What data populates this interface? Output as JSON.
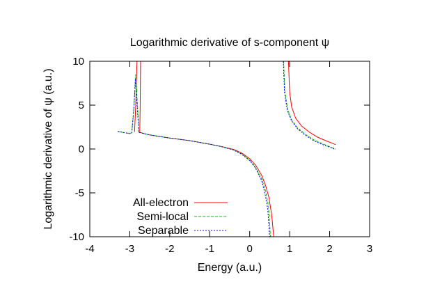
{
  "chart_data": {
    "type": "line",
    "title": "Logarithmic derivative of s-component ψ",
    "xlabel": "Energy (a.u.)",
    "ylabel": "Logarithmic derivative of ψ (a.u.)",
    "xlim": [
      -4,
      3
    ],
    "ylim": [
      -10,
      10
    ],
    "x_ticks": [
      -4,
      -3,
      -2,
      -1,
      0,
      1,
      2,
      3
    ],
    "y_ticks": [
      -10,
      -5,
      0,
      5,
      10
    ],
    "x_tick_labels": [
      "-4",
      "-3",
      "-2",
      "-1",
      "0",
      "1",
      "2",
      "3"
    ],
    "y_tick_labels": [
      "-10",
      "-5",
      "0",
      "5",
      "10"
    ],
    "grid": false,
    "legend_position": "bottom-left",
    "series": [
      {
        "name": "All-electron",
        "color": "#ff0000",
        "dash": "solid",
        "segments": [
          [
            [
              -2.88,
              1.95
            ],
            [
              -2.85,
              5
            ],
            [
              -2.82,
              10
            ]
          ],
          [
            [
              -2.73,
              10
            ],
            [
              -2.74,
              5
            ],
            [
              -2.75,
              1.9
            ],
            [
              -2.5,
              1.6
            ],
            [
              -2.0,
              1.25
            ],
            [
              -1.5,
              0.95
            ],
            [
              -1.0,
              0.55
            ],
            [
              -0.7,
              0.28
            ],
            [
              -0.4,
              -0.05
            ],
            [
              -0.2,
              -0.45
            ],
            [
              0.0,
              -1.1
            ],
            [
              0.15,
              -1.85
            ],
            [
              0.3,
              -3.0
            ],
            [
              0.4,
              -4.2
            ],
            [
              0.48,
              -5.5
            ],
            [
              0.55,
              -7.5
            ],
            [
              0.6,
              -10
            ]
          ],
          [
            [
              0.97,
              10
            ],
            [
              1.0,
              6.5
            ],
            [
              1.05,
              4.8
            ],
            [
              1.15,
              3.5
            ],
            [
              1.3,
              2.6
            ],
            [
              1.5,
              1.9
            ],
            [
              1.7,
              1.35
            ],
            [
              1.9,
              0.95
            ],
            [
              2.15,
              0.5
            ]
          ]
        ]
      },
      {
        "name": "Semi-local",
        "color": "#00c000",
        "dash": "dash",
        "segments": [
          [
            [
              -3.3,
              2.0
            ],
            [
              -3.0,
              1.75
            ],
            [
              -2.95,
              1.85
            ],
            [
              -2.9,
              4.5
            ],
            [
              -2.85,
              8.5
            ],
            [
              -2.8,
              4.5
            ],
            [
              -2.77,
              1.9
            ],
            [
              -2.5,
              1.6
            ],
            [
              -2.0,
              1.25
            ],
            [
              -1.5,
              0.95
            ],
            [
              -1.0,
              0.55
            ],
            [
              -0.7,
              0.27
            ],
            [
              -0.4,
              -0.1
            ],
            [
              -0.2,
              -0.55
            ],
            [
              0.0,
              -1.25
            ],
            [
              0.15,
              -2.1
            ],
            [
              0.3,
              -3.4
            ],
            [
              0.4,
              -4.8
            ],
            [
              0.47,
              -6.5
            ],
            [
              0.52,
              -10
            ]
          ],
          [
            [
              0.85,
              10
            ],
            [
              0.88,
              6.5
            ],
            [
              0.95,
              4.5
            ],
            [
              1.05,
              3.3
            ],
            [
              1.2,
              2.4
            ],
            [
              1.4,
              1.65
            ],
            [
              1.6,
              1.05
            ],
            [
              1.85,
              0.55
            ],
            [
              2.15,
              0.0
            ]
          ]
        ]
      },
      {
        "name": "Separable",
        "color": "#0000ff",
        "dash": "dot",
        "segments": [
          [
            [
              -3.3,
              2.0
            ],
            [
              -3.0,
              1.75
            ],
            [
              -2.95,
              1.85
            ],
            [
              -2.9,
              4.5
            ],
            [
              -2.86,
              8.0
            ],
            [
              -2.81,
              4.5
            ],
            [
              -2.77,
              1.9
            ],
            [
              -2.5,
              1.6
            ],
            [
              -2.0,
              1.25
            ],
            [
              -1.5,
              0.95
            ],
            [
              -1.0,
              0.55
            ],
            [
              -0.7,
              0.26
            ],
            [
              -0.4,
              -0.12
            ],
            [
              -0.2,
              -0.6
            ],
            [
              0.0,
              -1.3
            ],
            [
              0.15,
              -2.2
            ],
            [
              0.3,
              -3.6
            ],
            [
              0.38,
              -5.0
            ],
            [
              0.45,
              -6.8
            ],
            [
              0.5,
              -10
            ]
          ],
          [
            [
              0.84,
              10
            ],
            [
              0.87,
              6.5
            ],
            [
              0.94,
              4.4
            ],
            [
              1.05,
              3.2
            ],
            [
              1.2,
              2.3
            ],
            [
              1.4,
              1.55
            ],
            [
              1.6,
              0.95
            ],
            [
              1.85,
              0.45
            ],
            [
              2.15,
              -0.05
            ]
          ]
        ]
      }
    ]
  }
}
